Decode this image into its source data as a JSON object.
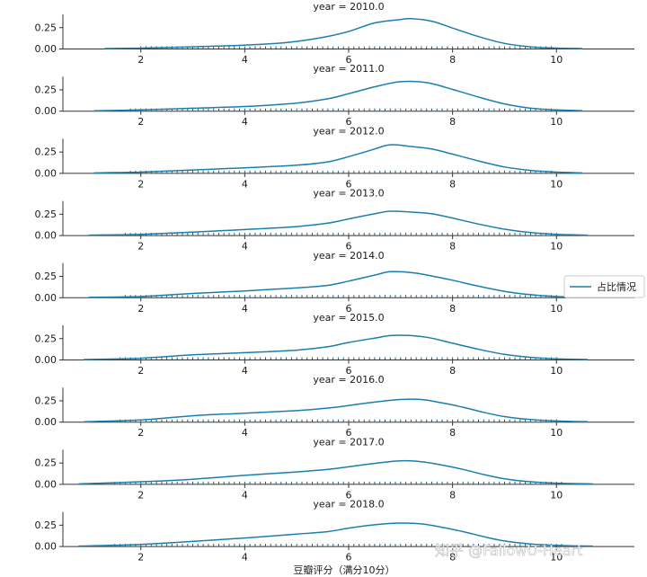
{
  "chart_data": {
    "type": "line",
    "layout": "faceted-rows",
    "facet_title_template": "year = {year}",
    "xlabel": "豆瓣评分（满分10分）",
    "xlim": [
      0.5,
      11.5
    ],
    "xticks": [
      2,
      4,
      6,
      8,
      10
    ],
    "ylim": [
      0,
      0.4
    ],
    "yticks": [
      0.0,
      0.25
    ],
    "ytick_labels": [
      "0.00",
      "0.25"
    ],
    "legend": {
      "label": "占比情况",
      "position": "right",
      "color": "#1a7fae"
    },
    "line_color": "#1a7fae",
    "rug_color": "#1f5f7a",
    "watermark": "知乎 @FallowU-Heart",
    "facets": [
      {
        "year": "2010.0",
        "x": [
          1.3,
          2,
          3,
          4,
          4.8,
          5.5,
          6,
          6.5,
          7,
          7.2,
          7.6,
          8,
          8.5,
          9,
          9.5,
          10,
          10.5
        ],
        "y": [
          0.0,
          0.005,
          0.02,
          0.04,
          0.07,
          0.13,
          0.2,
          0.3,
          0.34,
          0.35,
          0.32,
          0.24,
          0.14,
          0.06,
          0.02,
          0.005,
          0.0
        ]
      },
      {
        "year": "2011.0",
        "x": [
          1.1,
          2,
          3,
          4,
          5,
          5.6,
          6,
          6.5,
          7,
          7.5,
          8,
          8.5,
          9,
          9.5,
          10,
          10.5
        ],
        "y": [
          0.0,
          0.01,
          0.03,
          0.05,
          0.09,
          0.14,
          0.2,
          0.28,
          0.34,
          0.33,
          0.25,
          0.16,
          0.08,
          0.03,
          0.01,
          0.0
        ]
      },
      {
        "year": "2012.0",
        "x": [
          1.1,
          2,
          3,
          4,
          5,
          5.6,
          6,
          6.5,
          6.8,
          7.2,
          7.6,
          8,
          8.5,
          9,
          9.5,
          10,
          10.5
        ],
        "y": [
          0.0,
          0.01,
          0.035,
          0.06,
          0.09,
          0.13,
          0.19,
          0.28,
          0.33,
          0.31,
          0.28,
          0.22,
          0.14,
          0.07,
          0.03,
          0.01,
          0.0
        ]
      },
      {
        "year": "2013.0",
        "x": [
          1.0,
          2,
          3,
          4,
          5,
          5.6,
          6,
          6.5,
          6.8,
          7.2,
          7.6,
          8,
          8.5,
          9,
          9.5,
          10,
          10.6
        ],
        "y": [
          0.0,
          0.01,
          0.035,
          0.065,
          0.1,
          0.14,
          0.19,
          0.25,
          0.28,
          0.27,
          0.25,
          0.2,
          0.13,
          0.07,
          0.03,
          0.01,
          0.0
        ]
      },
      {
        "year": "2014.0",
        "x": [
          1.0,
          2,
          3,
          4,
          5,
          5.6,
          6,
          6.5,
          6.8,
          7.2,
          7.6,
          8,
          8.5,
          9,
          9.5,
          10,
          10.6
        ],
        "y": [
          0.0,
          0.01,
          0.045,
          0.075,
          0.11,
          0.14,
          0.19,
          0.26,
          0.3,
          0.29,
          0.25,
          0.2,
          0.13,
          0.07,
          0.03,
          0.01,
          0.0
        ]
      },
      {
        "year": "2015.0",
        "x": [
          0.9,
          2,
          3,
          4,
          5,
          5.6,
          6,
          6.5,
          6.8,
          7.2,
          7.6,
          8,
          8.5,
          9,
          9.5,
          10,
          10.6
        ],
        "y": [
          0.0,
          0.015,
          0.055,
          0.08,
          0.11,
          0.15,
          0.2,
          0.25,
          0.28,
          0.28,
          0.25,
          0.19,
          0.12,
          0.06,
          0.025,
          0.008,
          0.0
        ]
      },
      {
        "year": "2016.0",
        "x": [
          0.9,
          2,
          3,
          4,
          5,
          5.6,
          6,
          6.5,
          7,
          7.4,
          7.8,
          8.2,
          8.6,
          9,
          9.5,
          10,
          10.6
        ],
        "y": [
          0.0,
          0.02,
          0.07,
          0.1,
          0.13,
          0.16,
          0.19,
          0.23,
          0.26,
          0.26,
          0.22,
          0.17,
          0.11,
          0.06,
          0.025,
          0.008,
          0.0
        ]
      },
      {
        "year": "2017.0",
        "x": [
          0.8,
          2,
          3,
          4,
          5,
          5.6,
          6,
          6.5,
          7,
          7.4,
          7.8,
          8.2,
          8.6,
          9,
          9.5,
          10,
          10.7
        ],
        "y": [
          0.0,
          0.025,
          0.055,
          0.1,
          0.14,
          0.17,
          0.2,
          0.24,
          0.27,
          0.26,
          0.22,
          0.17,
          0.11,
          0.06,
          0.025,
          0.008,
          0.0
        ]
      },
      {
        "year": "2018.0",
        "x": [
          0.8,
          2,
          3,
          4,
          5,
          5.6,
          6,
          6.5,
          7,
          7.4,
          7.8,
          8.2,
          8.6,
          9,
          9.5,
          10,
          10.7
        ],
        "y": [
          0.0,
          0.02,
          0.055,
          0.095,
          0.14,
          0.17,
          0.21,
          0.25,
          0.27,
          0.26,
          0.22,
          0.17,
          0.11,
          0.06,
          0.025,
          0.008,
          0.0
        ]
      }
    ]
  }
}
